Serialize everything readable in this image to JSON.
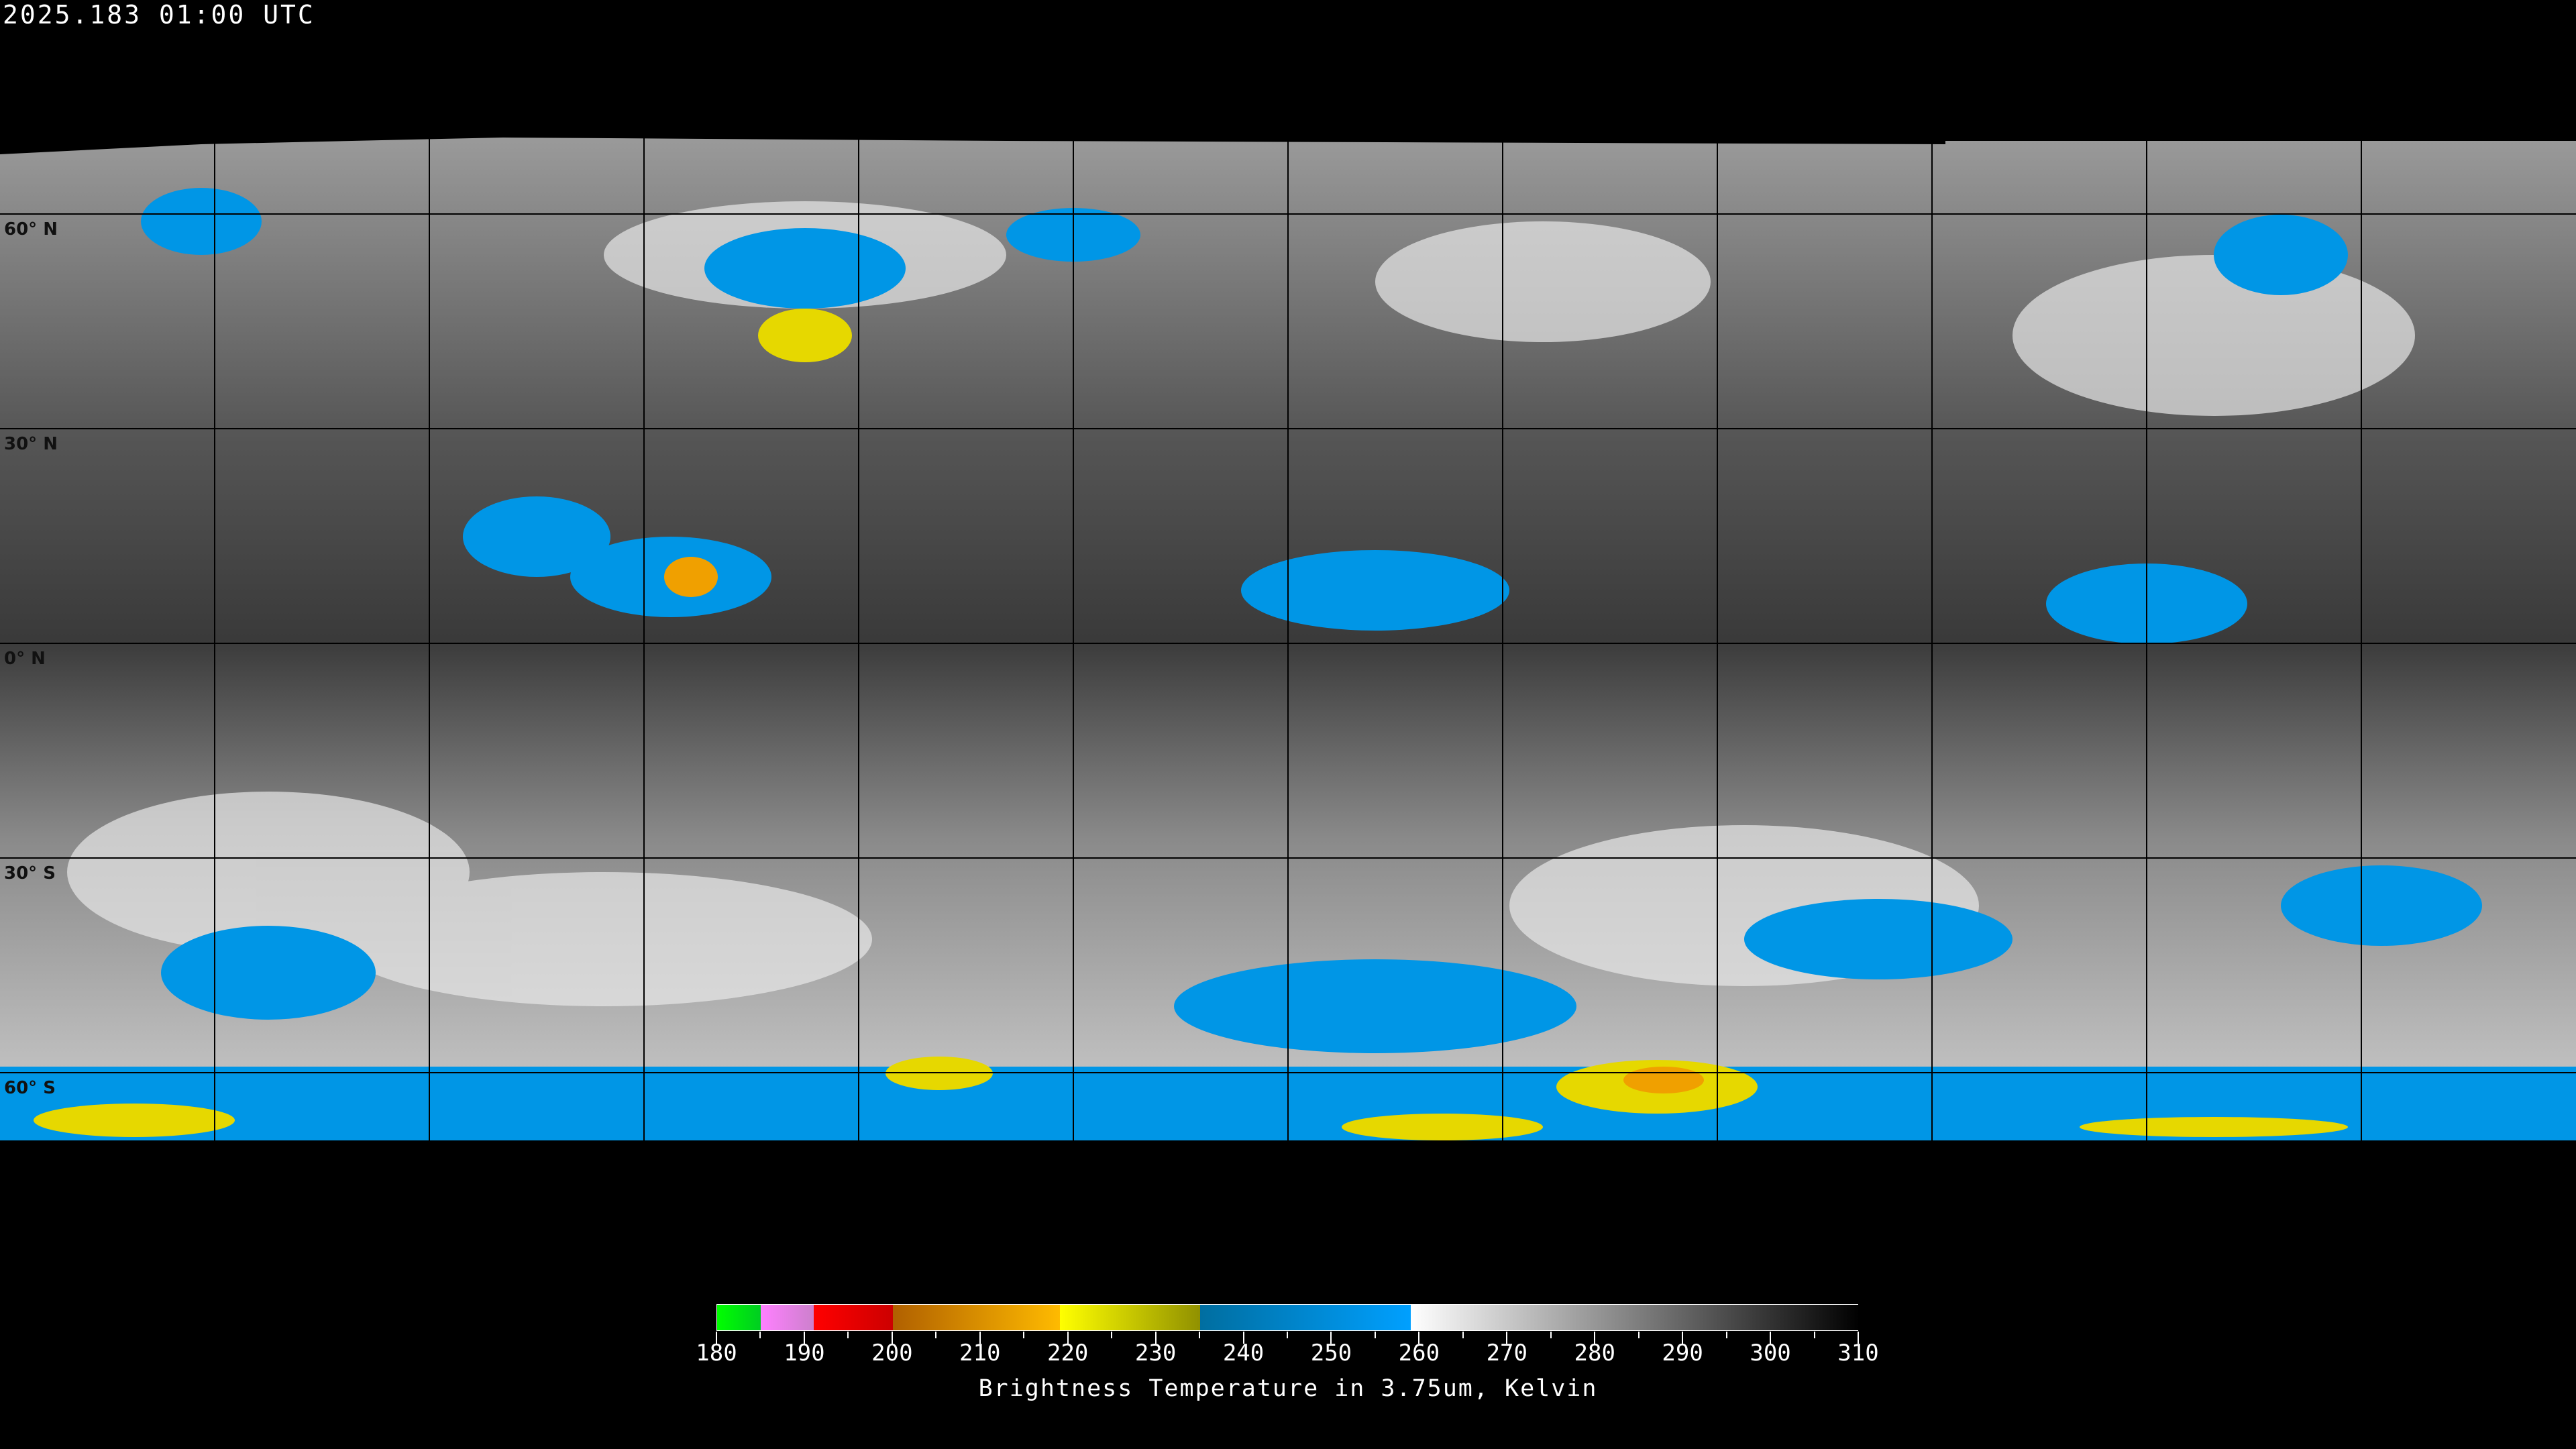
{
  "header": {
    "timestamp": "2025.183 01:00 UTC"
  },
  "map": {
    "projection": "equirectangular",
    "gridlines": {
      "longitude_step_deg": 30,
      "latitude_step_deg": 30
    },
    "latitude_labels": [
      {
        "lat": 60,
        "text": "60° N"
      },
      {
        "lat": 30,
        "text": "30° N"
      },
      {
        "lat": 0,
        "text": "0° N"
      },
      {
        "lat": -30,
        "text": "30° S"
      },
      {
        "lat": -60,
        "text": "60° S"
      }
    ]
  },
  "colorbar": {
    "title": "Brightness Temperature in 3.75um, Kelvin",
    "range": [
      180,
      310
    ],
    "tick_labels": [
      "180",
      "190",
      "200",
      "210",
      "220",
      "230",
      "240",
      "250",
      "260",
      "270",
      "280",
      "290",
      "300",
      "310"
    ],
    "segments": [
      {
        "from": 180,
        "to": 185,
        "start": "#00ff00",
        "end": "#00cc22"
      },
      {
        "from": 185,
        "to": 191,
        "start": "#ff80ff",
        "end": "#cc80cc"
      },
      {
        "from": 191,
        "to": 200,
        "start": "#ff0000",
        "end": "#cc0000"
      },
      {
        "from": 200,
        "to": 219,
        "start": "#b06000",
        "end": "#ffbb00"
      },
      {
        "from": 219,
        "to": 235,
        "start": "#ffff00",
        "end": "#909000"
      },
      {
        "from": 235,
        "to": 259,
        "start": "#006ea0",
        "end": "#00a0ff"
      },
      {
        "from": 259,
        "to": 310,
        "start": "#ffffff",
        "end": "#000000"
      }
    ]
  }
}
